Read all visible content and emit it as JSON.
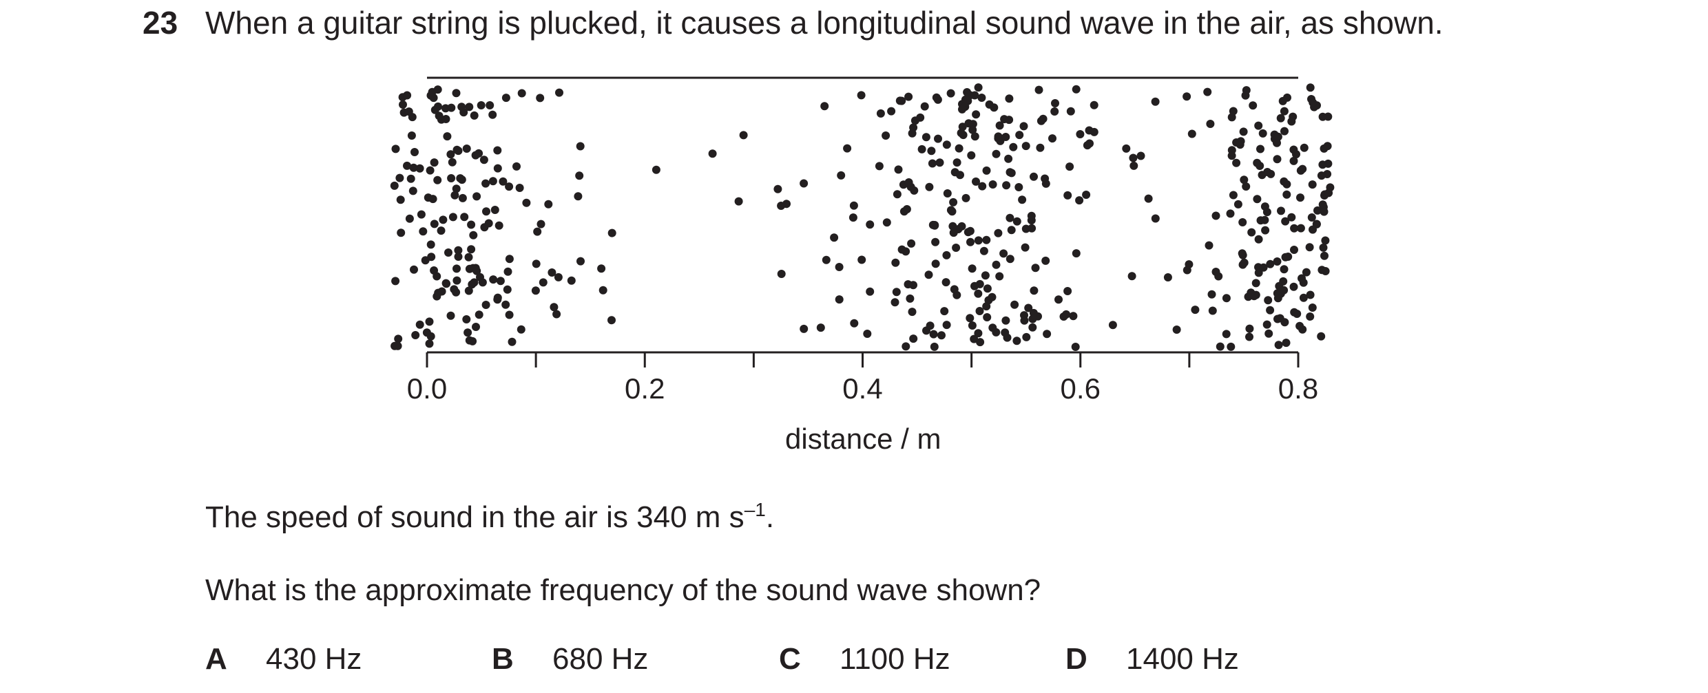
{
  "question": {
    "number": "23",
    "stem": "When a guitar string is plucked, it causes a longitudinal sound wave in the air, as shown."
  },
  "figure": {
    "axis_label": "distance / m",
    "ticks": [
      "0.0",
      "0.2",
      "0.4",
      "0.6",
      "0.8"
    ],
    "axis_range": [
      0.0,
      0.8
    ],
    "compression_centres": [
      0.02,
      0.5,
      0.8
    ],
    "rarefaction_centres": [
      0.25,
      0.7
    ],
    "dot_color": "#231f20"
  },
  "speed_text": {
    "before": "The speed of sound in the air is 340 m s",
    "exponent": "–1",
    "after": "."
  },
  "prompt": "What is the approximate frequency of the sound wave shown?",
  "options": [
    {
      "letter": "A",
      "text": "430 Hz"
    },
    {
      "letter": "B",
      "text": "680 Hz"
    },
    {
      "letter": "C",
      "text": "1100 Hz"
    },
    {
      "letter": "D",
      "text": "1400 Hz"
    }
  ]
}
